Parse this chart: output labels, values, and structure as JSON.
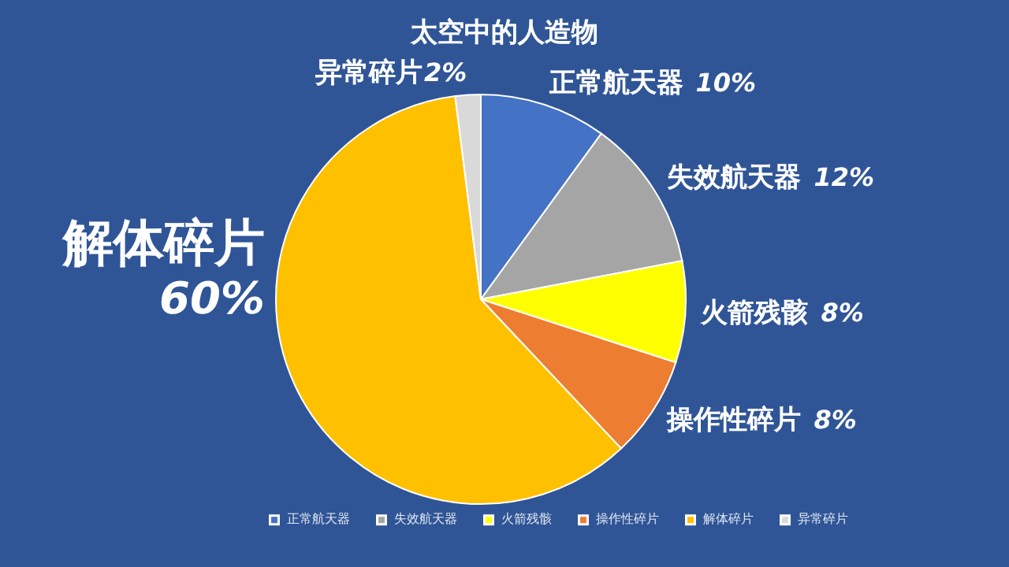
{
  "chart_data": {
    "type": "pie",
    "title": "太空中的人造物",
    "categories": [
      "正常航天器",
      "失效航天器",
      "火箭残骸",
      "操作性碎片",
      "解体碎片",
      "异常碎片"
    ],
    "values": [
      10,
      12,
      8,
      8,
      60,
      2
    ],
    "value_labels": [
      "10%",
      "12%",
      "8%",
      "8%",
      "60%",
      "2%"
    ],
    "colors": [
      "#4472c4",
      "#a5a5a5",
      "#ffff00",
      "#ed7d31",
      "#ffc000",
      "#d9d9d9"
    ],
    "data_labels": true,
    "legend": "bottom"
  }
}
